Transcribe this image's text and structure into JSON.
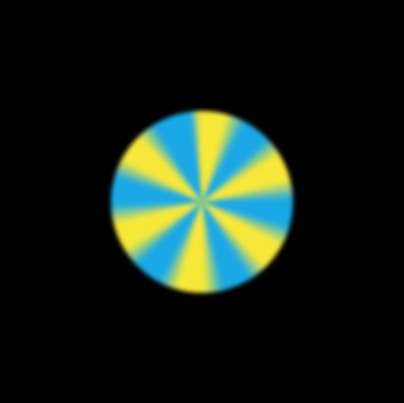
{
  "scene": {
    "background": "#000000",
    "disc": {
      "colors": [
        "#f7e83a",
        "#1aa9e6"
      ],
      "sector_count": 12,
      "pattern": "pinwheel"
    }
  }
}
